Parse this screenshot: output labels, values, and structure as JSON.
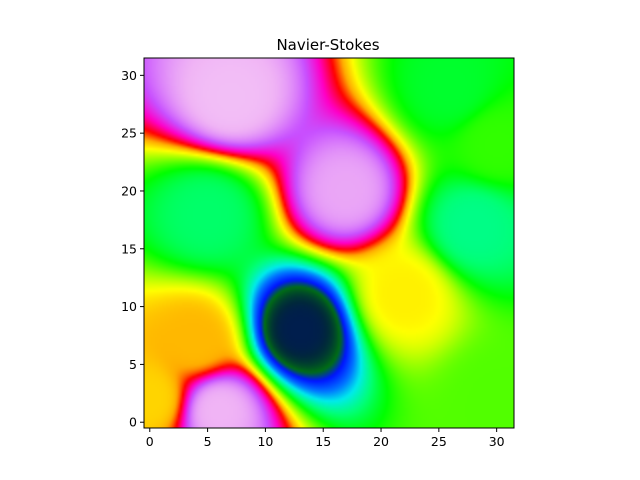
{
  "chart_data": {
    "type": "heatmap",
    "title": "Navier-Stokes",
    "xlabel": "",
    "ylabel": "",
    "xlim": [
      -0.5,
      31.5
    ],
    "ylim": [
      -0.5,
      31.5
    ],
    "grid": false,
    "legend": "none",
    "colormap": "gist_ncar",
    "xticks": [
      0,
      5,
      10,
      15,
      20,
      25,
      30
    ],
    "yticks": [
      0,
      5,
      10,
      15,
      20,
      25,
      30
    ],
    "xtick_labels": [
      "0",
      "5",
      "10",
      "15",
      "20",
      "25",
      "30"
    ],
    "ytick_labels": [
      "0",
      "5",
      "10",
      "15",
      "20",
      "25",
      "30"
    ],
    "field_points": [
      {
        "x": 13,
        "y": 8,
        "value": 0.03
      },
      {
        "x": 7,
        "y": 28,
        "value": 0.94
      },
      {
        "x": 17,
        "y": 20,
        "value": 0.92
      },
      {
        "x": 6,
        "y": 1,
        "value": 0.93
      },
      {
        "x": 22,
        "y": 11,
        "value": 0.62
      },
      {
        "x": 4,
        "y": 7,
        "value": 0.66
      },
      {
        "x": 28,
        "y": 17,
        "value": 0.36
      },
      {
        "x": 5,
        "y": 18,
        "value": 0.38
      },
      {
        "x": 26,
        "y": 29,
        "value": 0.42
      },
      {
        "x": 30,
        "y": 2,
        "value": 0.5
      },
      {
        "x": 0,
        "y": 2,
        "value": 0.64
      },
      {
        "x": 30,
        "y": 24,
        "value": 0.48
      }
    ]
  }
}
